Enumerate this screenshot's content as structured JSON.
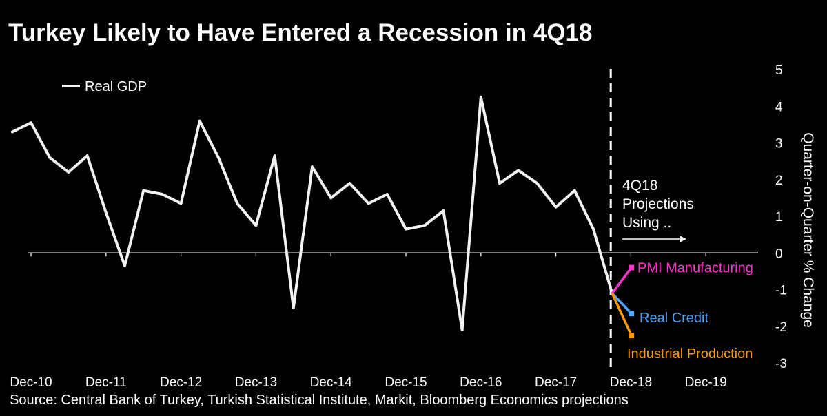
{
  "chart_data": {
    "type": "line",
    "title": "Turkey Likely to Have Entered a Recession in 4Q18",
    "source": "Source: Central Bank of Turkey, Turkish Statistical Institute, Markit, Bloomberg Economics projections",
    "ylabel": "Quarter-on-Quarter % Change",
    "ylim": [
      -3,
      5
    ],
    "yticks": [
      5,
      4,
      3,
      2,
      1,
      0,
      -1,
      -2,
      -3
    ],
    "xticks": [
      "Dec-10",
      "Dec-11",
      "Dec-12",
      "Dec-13",
      "Dec-14",
      "Dec-15",
      "Dec-16",
      "Dec-17",
      "Dec-18",
      "Dec-19"
    ],
    "legend": {
      "position": "top-left",
      "entries": [
        "Real GDP"
      ]
    },
    "series": [
      {
        "name": "Real GDP",
        "color": "#f2f2f2",
        "x": [
          "Sep-10",
          "Dec-10",
          "Mar-11",
          "Jun-11",
          "Sep-11",
          "Dec-11",
          "Mar-12",
          "Jun-12",
          "Sep-12",
          "Dec-12",
          "Mar-13",
          "Jun-13",
          "Sep-13",
          "Dec-13",
          "Mar-14",
          "Jun-14",
          "Sep-14",
          "Dec-14",
          "Mar-15",
          "Jun-15",
          "Sep-15",
          "Dec-15",
          "Mar-16",
          "Jun-16",
          "Sep-16",
          "Dec-16",
          "Mar-17",
          "Jun-17",
          "Sep-17",
          "Dec-17",
          "Mar-18",
          "Jun-18",
          "Sep-18"
        ],
        "values": [
          3.3,
          3.55,
          2.6,
          2.2,
          2.65,
          1.1,
          -0.35,
          1.7,
          1.6,
          1.35,
          3.6,
          2.6,
          1.35,
          0.75,
          2.65,
          -1.5,
          2.35,
          1.5,
          1.9,
          1.35,
          1.6,
          0.65,
          0.75,
          1.15,
          -2.1,
          4.25,
          1.9,
          2.25,
          1.9,
          1.25,
          1.7,
          0.65,
          -1.1
        ]
      }
    ],
    "projections": [
      {
        "name": "PMI Manufacturing",
        "color": "#ff33cc",
        "from": -1.1,
        "value": -0.4
      },
      {
        "name": "Real Credit",
        "color": "#4da6ff",
        "from": -1.1,
        "value": -1.65
      },
      {
        "name": "Industrial Production",
        "color": "#ff9900",
        "from": -1.1,
        "value": -2.25
      }
    ],
    "annotation": {
      "lines": [
        "4Q18",
        "Projections",
        "Using .."
      ]
    }
  }
}
